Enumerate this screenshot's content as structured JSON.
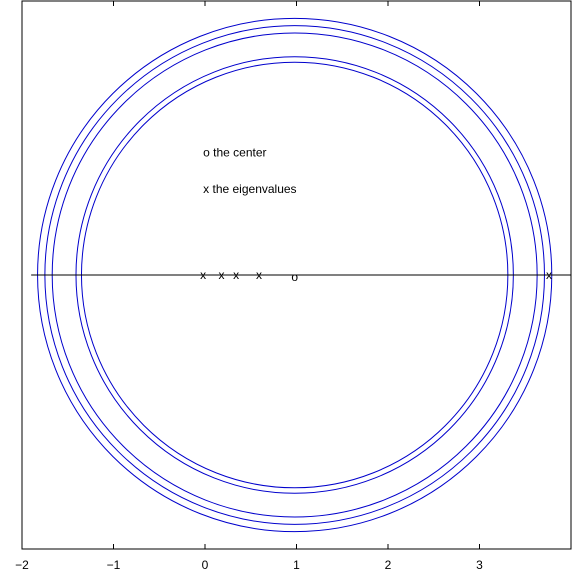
{
  "chart_data": {
    "type": "scatter",
    "title": "",
    "xlabel": "",
    "ylabel": "",
    "xlim": [
      -2,
      4
    ],
    "ylim": [
      -3,
      3
    ],
    "x_ticks": [
      {
        "value": -2,
        "label": "−2"
      },
      {
        "value": -1,
        "label": "−1"
      },
      {
        "value": 0,
        "label": "0"
      },
      {
        "value": 1,
        "label": "1"
      },
      {
        "value": 2,
        "label": "2"
      },
      {
        "value": 3,
        "label": "3"
      }
    ],
    "grid": false,
    "colors": {
      "circles": "#0000cc",
      "axis": "#000000"
    },
    "center": {
      "x": 0.98,
      "y": 0,
      "marker": "o"
    },
    "circles": [
      {
        "cx": 0.98,
        "cy": 0,
        "r": 2.33
      },
      {
        "cx": 0.98,
        "cy": 0,
        "r": 2.39
      },
      {
        "cx": 0.98,
        "cy": 0,
        "r": 2.65
      },
      {
        "cx": 0.98,
        "cy": 0,
        "r": 2.73
      },
      {
        "cx": 0.98,
        "cy": 0,
        "r": 2.81
      }
    ],
    "eigenvalues": [
      {
        "x": -0.02,
        "y": 0,
        "marker": "x"
      },
      {
        "x": 0.18,
        "y": 0,
        "marker": "x"
      },
      {
        "x": 0.34,
        "y": 0,
        "marker": "x"
      },
      {
        "x": 0.59,
        "y": 0,
        "marker": "x"
      },
      {
        "x": 3.76,
        "y": 0,
        "marker": "x"
      }
    ],
    "horizontal_line": {
      "y": 0,
      "from": -1.9,
      "to": 4
    },
    "annotations": [
      {
        "text": "o the center",
        "x": -0.02,
        "y": 1.3
      },
      {
        "text": "x the eigenvalues",
        "x": -0.02,
        "y": 0.9
      }
    ]
  }
}
